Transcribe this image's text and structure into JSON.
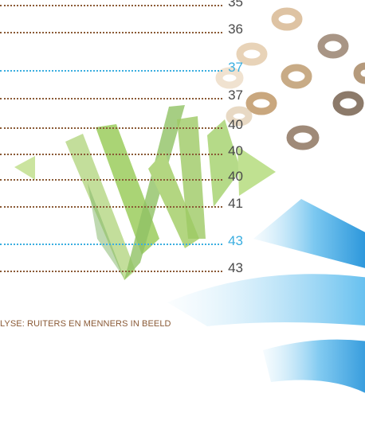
{
  "toc": [
    {
      "page": "35",
      "accent": false
    },
    {
      "page": "36",
      "accent": false
    },
    {
      "page": "37",
      "accent": true
    },
    {
      "page": "37",
      "accent": false
    },
    {
      "page": "40",
      "accent": false
    },
    {
      "page": "40",
      "accent": false
    },
    {
      "page": "40",
      "accent": false
    },
    {
      "page": "41",
      "accent": false
    },
    {
      "page": "43",
      "accent": true
    },
    {
      "page": "43",
      "accent": false
    }
  ],
  "footer": "LYSE: RUITERS EN MENNERS IN BEELD",
  "colors": {
    "dots_brown": "#8a5a36",
    "dots_blue": "#3aaee0",
    "ring_tan": "#c9a77e",
    "ring_gray": "#8c7a6a",
    "green": "#8cc048",
    "blue_wave": "#2f9ee0"
  }
}
